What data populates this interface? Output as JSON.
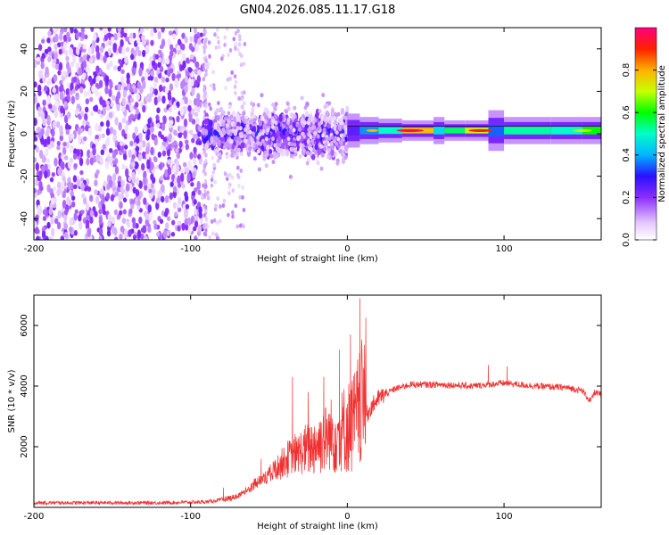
{
  "title": "GN04.2026.085.11.17.G18",
  "chart_data": [
    {
      "type": "heatmap",
      "name": "spectrogram",
      "xlabel": "Height of straight line (km)",
      "ylabel": "Frequency (Hz)",
      "xlim": [
        -200,
        162
      ],
      "ylim": [
        -50,
        50
      ],
      "xticks": [
        -200,
        -100,
        0,
        100
      ],
      "yticks": [
        -40,
        -20,
        0,
        20,
        40
      ],
      "colorbar": {
        "label": "Normalized spectral amplitude",
        "range": [
          0,
          1
        ],
        "ticks": [
          "0.0",
          "0.2",
          "0.4",
          "0.6",
          "0.8"
        ],
        "tick_values": [
          0.0,
          0.2,
          0.4,
          0.6,
          0.8
        ]
      },
      "regions": [
        {
          "x_range": [
            -200,
            -92
          ],
          "description": "scattered low-amplitude noise",
          "amplitude": [
            0.02,
            0.15
          ]
        },
        {
          "x_range": [
            -92,
            -70
          ],
          "description": "sparse noise",
          "amplitude": [
            0.03,
            0.12
          ]
        },
        {
          "x_range": [
            -92,
            0
          ],
          "description": "broad band near 0 Hz",
          "freq_range": [
            -20,
            20
          ],
          "amplitude": [
            0.1,
            0.35
          ]
        },
        {
          "x_range": [
            0,
            162
          ],
          "description": "coherent signal near 1-2 Hz",
          "freq_center": 1.5,
          "amplitude": [
            0.3,
            0.98
          ]
        }
      ]
    },
    {
      "type": "line",
      "name": "snr",
      "xlabel": "Height of straight line (km)",
      "ylabel": "SNR (10 * v/v)",
      "xlim": [
        -200,
        162
      ],
      "ylim": [
        0,
        7000
      ],
      "xticks": [
        -200,
        -100,
        0,
        100
      ],
      "yticks": [
        2000,
        4000,
        6000
      ],
      "color": "#f03030",
      "series": [
        {
          "name": "SNR",
          "x": [
            -200,
            -160,
            -120,
            -90,
            -80,
            -70,
            -60,
            -50,
            -40,
            -30,
            -20,
            -10,
            0,
            5,
            10,
            15,
            20,
            30,
            40,
            60,
            80,
            100,
            120,
            140,
            150,
            155,
            158,
            162
          ],
          "y": [
            150,
            150,
            150,
            180,
            250,
            350,
            700,
            1000,
            1400,
            1600,
            1800,
            2000,
            2100,
            2300,
            2800,
            3300,
            3600,
            3900,
            4050,
            4050,
            4000,
            4100,
            4000,
            3950,
            3850,
            3500,
            3800,
            3700
          ]
        }
      ],
      "spikes": [
        {
          "x": -79,
          "y": 650
        },
        {
          "x": -55,
          "y": 1600
        },
        {
          "x": -35,
          "y": 4300
        },
        {
          "x": -25,
          "y": 3800
        },
        {
          "x": -15,
          "y": 4300
        },
        {
          "x": -5,
          "y": 5200
        },
        {
          "x": 2,
          "y": 5700
        },
        {
          "x": 8,
          "y": 6900
        },
        {
          "x": 90,
          "y": 4700
        },
        {
          "x": 102,
          "y": 4650
        }
      ]
    }
  ]
}
